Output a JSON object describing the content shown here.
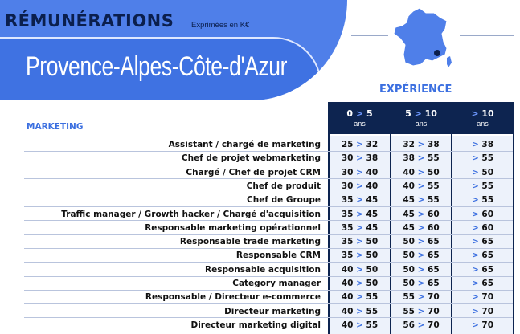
{
  "header": {
    "title": "RÉMUNÉRATIONS",
    "subtitle": "Exprimées en K€",
    "region": "Provence-Alpes-Côte-d'Azur"
  },
  "experience_label": "EXPÉRIENCE",
  "section_label": "MARKETING",
  "colors": {
    "banner": "#4f7fe9",
    "dark_navy": "#0d2450",
    "accent_blue": "#3b6fe0"
  },
  "columns": [
    {
      "from": "0",
      "to": "5",
      "unit": "ans"
    },
    {
      "from": "5",
      "to": "10",
      "unit": "ans"
    },
    {
      "from": "",
      "to": "10",
      "unit": "ans"
    }
  ],
  "rows": [
    {
      "job": "Assistant / chargé de marketing",
      "c1": [
        "25",
        "32"
      ],
      "c2": [
        "32",
        "38"
      ],
      "c3": [
        "",
        "38"
      ]
    },
    {
      "job": "Chef de projet webmarketing",
      "c1": [
        "30",
        "38"
      ],
      "c2": [
        "38",
        "55"
      ],
      "c3": [
        "",
        "55"
      ]
    },
    {
      "job": "Chargé / Chef de projet CRM",
      "c1": [
        "30",
        "40"
      ],
      "c2": [
        "40",
        "50"
      ],
      "c3": [
        "",
        "50"
      ]
    },
    {
      "job": "Chef de produit",
      "c1": [
        "30",
        "40"
      ],
      "c2": [
        "40",
        "55"
      ],
      "c3": [
        "",
        "55"
      ]
    },
    {
      "job": "Chef de Groupe",
      "c1": [
        "35",
        "45"
      ],
      "c2": [
        "45",
        "55"
      ],
      "c3": [
        "",
        "55"
      ]
    },
    {
      "job": "Traffic manager / Growth hacker / Chargé d'acquisition",
      "c1": [
        "35",
        "45"
      ],
      "c2": [
        "45",
        "60"
      ],
      "c3": [
        "",
        "60"
      ]
    },
    {
      "job": "Responsable marketing opérationnel",
      "c1": [
        "35",
        "45"
      ],
      "c2": [
        "45",
        "60"
      ],
      "c3": [
        "",
        "60"
      ]
    },
    {
      "job": "Responsable trade marketing",
      "c1": [
        "35",
        "50"
      ],
      "c2": [
        "50",
        "65"
      ],
      "c3": [
        "",
        "65"
      ]
    },
    {
      "job": "Responsable CRM",
      "c1": [
        "35",
        "50"
      ],
      "c2": [
        "50",
        "65"
      ],
      "c3": [
        "",
        "65"
      ]
    },
    {
      "job": "Responsable acquisition",
      "c1": [
        "40",
        "50"
      ],
      "c2": [
        "50",
        "65"
      ],
      "c3": [
        "",
        "65"
      ]
    },
    {
      "job": "Category manager",
      "c1": [
        "40",
        "50"
      ],
      "c2": [
        "50",
        "65"
      ],
      "c3": [
        "",
        "65"
      ]
    },
    {
      "job": "Responsable / Directeur e-commerce",
      "c1": [
        "40",
        "55"
      ],
      "c2": [
        "55",
        "70"
      ],
      "c3": [
        "",
        "70"
      ]
    },
    {
      "job": "Directeur marketing",
      "c1": [
        "40",
        "55"
      ],
      "c2": [
        "55",
        "70"
      ],
      "c3": [
        "",
        "70"
      ]
    },
    {
      "job": "Directeur marketing digital",
      "c1": [
        "40",
        "55"
      ],
      "c2": [
        "56",
        "70"
      ],
      "c3": [
        "",
        "70"
      ]
    }
  ]
}
